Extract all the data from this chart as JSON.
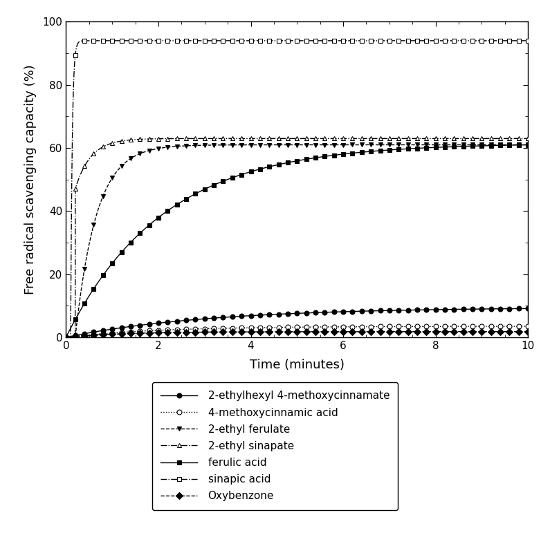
{
  "xlabel": "Time (minutes)",
  "ylabel": "Free radical scavenging capacity (%)",
  "xlim": [
    0,
    10
  ],
  "ylim": [
    0,
    100
  ],
  "xticks": [
    0,
    2,
    4,
    6,
    8,
    10
  ],
  "yticks": [
    0,
    20,
    40,
    60,
    80,
    100
  ],
  "series": [
    {
      "label": "2-ethylhexyl 4-methoxycinnamate",
      "linestyle": "solid",
      "marker": "o",
      "markerfacecolor": "black",
      "markeredgecolor": "black",
      "color": "black",
      "plateau": 9.5,
      "rate": 0.32,
      "t0": 0.0,
      "y0": 0.0
    },
    {
      "label": "4-methoxycinnamic acid",
      "linestyle": "dotted",
      "marker": "o",
      "markerfacecolor": "white",
      "markeredgecolor": "black",
      "color": "black",
      "plateau": 3.5,
      "rate": 0.5,
      "t0": 0.0,
      "y0": 0.0
    },
    {
      "label": "2-ethyl ferulate",
      "linestyle": "dashed",
      "marker": "v",
      "markerfacecolor": "black",
      "markeredgecolor": "black",
      "color": "black",
      "plateau": 61.0,
      "rate": 2.2,
      "t0": 0.2,
      "y0": 0.0
    },
    {
      "label": "2-ethyl sinapate",
      "linestyle": "dashdot",
      "marker": "^",
      "markerfacecolor": "white",
      "markeredgecolor": "black",
      "color": "black",
      "plateau": 63.0,
      "rate": 3.0,
      "t0": 0.2,
      "y0": 47.0
    },
    {
      "label": "ferulic acid",
      "linestyle": "solid",
      "marker": "s",
      "markerfacecolor": "black",
      "markeredgecolor": "black",
      "color": "black",
      "plateau": 61.5,
      "rate": 0.48,
      "t0": 0.0,
      "y0": 0.0
    },
    {
      "label": "sinapic acid",
      "linestyle": "dashdot",
      "marker": "s",
      "markerfacecolor": "white",
      "markeredgecolor": "black",
      "color": "black",
      "plateau": 94.0,
      "rate": 30.0,
      "t0": 0.1,
      "y0": 0.0
    },
    {
      "label": "Oxybenzone",
      "linestyle": "dashed",
      "marker": "D",
      "markerfacecolor": "black",
      "markeredgecolor": "black",
      "color": "black",
      "plateau": 1.8,
      "rate": 0.8,
      "t0": 0.0,
      "y0": 0.0
    }
  ],
  "legend_ncol": 1,
  "figsize": [
    7.95,
    7.87
  ],
  "dpi": 100
}
